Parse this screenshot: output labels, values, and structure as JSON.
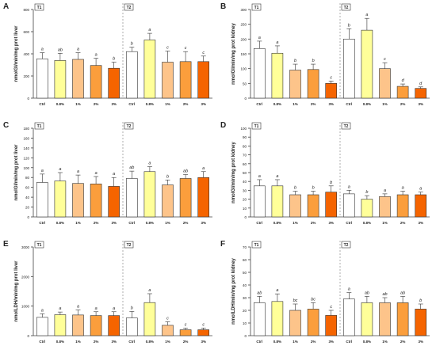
{
  "panel_order": [
    "A",
    "B",
    "C",
    "D",
    "E",
    "F"
  ],
  "colors": {
    "Ctrl": "#ffffff",
    "0.8%": "#ffff99",
    "1%": "#fdc48a",
    "2%": "#fb9e3c",
    "3%": "#f56400",
    "stroke": "#333333"
  },
  "chart_data": [
    {
      "panel": "A",
      "type": "bar",
      "ylabel": "nmolGl/min/mg prot liver",
      "ylim": [
        0,
        800
      ],
      "yticks": [
        0,
        200,
        400,
        600,
        800
      ],
      "groups": [
        "T1",
        "T2"
      ],
      "categories": [
        "Ctrl",
        "0.8%",
        "1%",
        "2%",
        "3%"
      ],
      "series": [
        {
          "name": "T1",
          "values": [
            355,
            340,
            350,
            295,
            270
          ],
          "errors": [
            55,
            65,
            60,
            65,
            55
          ],
          "letters": [
            "a",
            "ab",
            "a",
            "a",
            "b"
          ]
        },
        {
          "name": "T2",
          "values": [
            420,
            525,
            325,
            330,
            330
          ],
          "errors": [
            40,
            60,
            100,
            90,
            50
          ],
          "letters": [
            "b",
            "a",
            "c",
            "c",
            "c"
          ]
        }
      ]
    },
    {
      "panel": "B",
      "type": "bar",
      "ylabel": "nmolGl/min/mg prot kidney",
      "ylim": [
        0,
        300
      ],
      "yticks": [
        0,
        50,
        100,
        150,
        200,
        250,
        300
      ],
      "groups": [
        "T1",
        "T2"
      ],
      "categories": [
        "Ctrl",
        "0.8%",
        "1%",
        "2%",
        "3%"
      ],
      "series": [
        {
          "name": "T1",
          "values": [
            168,
            152,
            95,
            97,
            50
          ],
          "errors": [
            25,
            25,
            20,
            18,
            8
          ],
          "letters": [
            "a",
            "a",
            "b",
            "b",
            "c"
          ]
        },
        {
          "name": "T2",
          "values": [
            200,
            230,
            100,
            40,
            33
          ],
          "errors": [
            35,
            40,
            20,
            8,
            5
          ],
          "letters": [
            "b",
            "a",
            "c",
            "d",
            "d"
          ]
        }
      ]
    },
    {
      "panel": "C",
      "type": "bar",
      "ylabel": "nmolGl/min/mg prot liver",
      "ylim": [
        0,
        180
      ],
      "yticks": [
        0,
        20,
        40,
        60,
        80,
        100,
        120,
        140,
        160,
        180
      ],
      "groups": [
        "T1",
        "T2"
      ],
      "categories": [
        "Ctrl",
        "0.8%",
        "1%",
        "2%",
        "3%"
      ],
      "series": [
        {
          "name": "T1",
          "values": [
            70,
            73,
            68,
            67,
            62
          ],
          "errors": [
            17,
            17,
            17,
            15,
            18
          ],
          "letters": [
            "a",
            "a",
            "a",
            "a",
            "a"
          ]
        },
        {
          "name": "T2",
          "values": [
            78,
            92,
            65,
            78,
            80
          ],
          "errors": [
            15,
            10,
            10,
            8,
            12
          ],
          "letters": [
            "ab",
            "a",
            "b",
            "ab",
            "a"
          ]
        }
      ]
    },
    {
      "panel": "D",
      "type": "bar",
      "ylabel": "nmolGl/min/mg prot kidney",
      "ylim": [
        0,
        100
      ],
      "yticks": [
        0,
        10,
        20,
        30,
        40,
        50,
        60,
        70,
        80,
        90,
        100
      ],
      "groups": [
        "T1",
        "T2"
      ],
      "categories": [
        "Ctrl",
        "0.8%",
        "1%",
        "2%",
        "3%"
      ],
      "series": [
        {
          "name": "T1",
          "values": [
            35,
            35,
            25,
            25,
            28
          ],
          "errors": [
            7,
            7,
            4,
            4,
            7
          ],
          "letters": [
            "a",
            "a",
            "b",
            "b",
            "b"
          ]
        },
        {
          "name": "T2",
          "values": [
            26,
            20,
            23,
            25,
            25
          ],
          "errors": [
            4,
            4,
            3,
            4,
            3
          ],
          "letters": [
            "a",
            "b",
            "a",
            "a",
            "a"
          ]
        }
      ]
    },
    {
      "panel": "E",
      "type": "bar",
      "ylabel": "nmolLDH/min/mg prot liver",
      "ylim": [
        0,
        3000
      ],
      "yticks": [
        0,
        1000,
        2000,
        3000
      ],
      "groups": [
        "T1",
        "T2"
      ],
      "categories": [
        "Ctrl",
        "0.8%",
        "1%",
        "2%",
        "3%"
      ],
      "series": [
        {
          "name": "T1",
          "values": [
            620,
            710,
            700,
            680,
            680
          ],
          "errors": [
            120,
            90,
            170,
            130,
            130
          ],
          "letters": [
            "a",
            "a",
            "a",
            "a",
            "a"
          ]
        },
        {
          "name": "T2",
          "values": [
            600,
            1120,
            350,
            200,
            200
          ],
          "errors": [
            220,
            300,
            120,
            60,
            60
          ],
          "letters": [
            "b",
            "a",
            "c",
            "c",
            "c"
          ]
        }
      ]
    },
    {
      "panel": "F",
      "type": "bar",
      "ylabel": "nmolLDH/min/mg prot kidney",
      "ylim": [
        0,
        70
      ],
      "yticks": [
        0,
        10,
        20,
        30,
        40,
        50,
        60,
        70
      ],
      "groups": [
        "T1",
        "T2"
      ],
      "categories": [
        "Ctrl",
        "0.8%",
        "1%",
        "2%",
        "3%"
      ],
      "series": [
        {
          "name": "T1",
          "values": [
            26,
            27,
            20,
            21,
            16
          ],
          "errors": [
            5,
            6,
            5,
            5,
            4
          ],
          "letters": [
            "ab",
            "a",
            "bc",
            "bc",
            "c"
          ]
        },
        {
          "name": "T2",
          "values": [
            29,
            26,
            26,
            26,
            21
          ],
          "errors": [
            5,
            5,
            4,
            5,
            4
          ],
          "letters": [
            "a",
            "ab",
            "ab",
            "ab",
            "b"
          ]
        }
      ]
    }
  ]
}
